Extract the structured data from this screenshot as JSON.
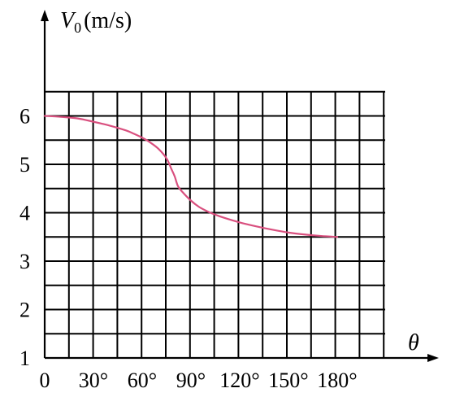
{
  "chart_data": {
    "type": "line",
    "title": "",
    "ylabel_symbol": "V",
    "ylabel_subscript": "0",
    "ylabel_unit": "(m/s)",
    "xlabel": "θ",
    "x_tick_labels": [
      "0",
      "30°",
      "60°",
      "90°",
      "120°",
      "150°",
      "180°"
    ],
    "y_tick_labels": [
      "1",
      "2",
      "3",
      "4",
      "5",
      "6"
    ],
    "xlim": [
      0,
      210
    ],
    "ylim": [
      1,
      6.5
    ],
    "x_tick_values": [
      0,
      30,
      60,
      90,
      120,
      150,
      180
    ],
    "y_tick_values": [
      1,
      2,
      3,
      4,
      5,
      6
    ],
    "grid": true,
    "series_color": "#d9507f",
    "series": [
      {
        "x": [
          0,
          10,
          20,
          30,
          40,
          50,
          55,
          60,
          65,
          70,
          75,
          78,
          80,
          82,
          85,
          90,
          95,
          100,
          105,
          110,
          120,
          130,
          140,
          150,
          160,
          170,
          180
        ],
        "y": [
          6.0,
          5.98,
          5.95,
          5.88,
          5.8,
          5.7,
          5.63,
          5.55,
          5.45,
          5.32,
          5.12,
          4.9,
          4.75,
          4.55,
          4.42,
          4.25,
          4.12,
          4.03,
          3.96,
          3.9,
          3.8,
          3.72,
          3.65,
          3.59,
          3.55,
          3.52,
          3.5
        ]
      }
    ]
  }
}
